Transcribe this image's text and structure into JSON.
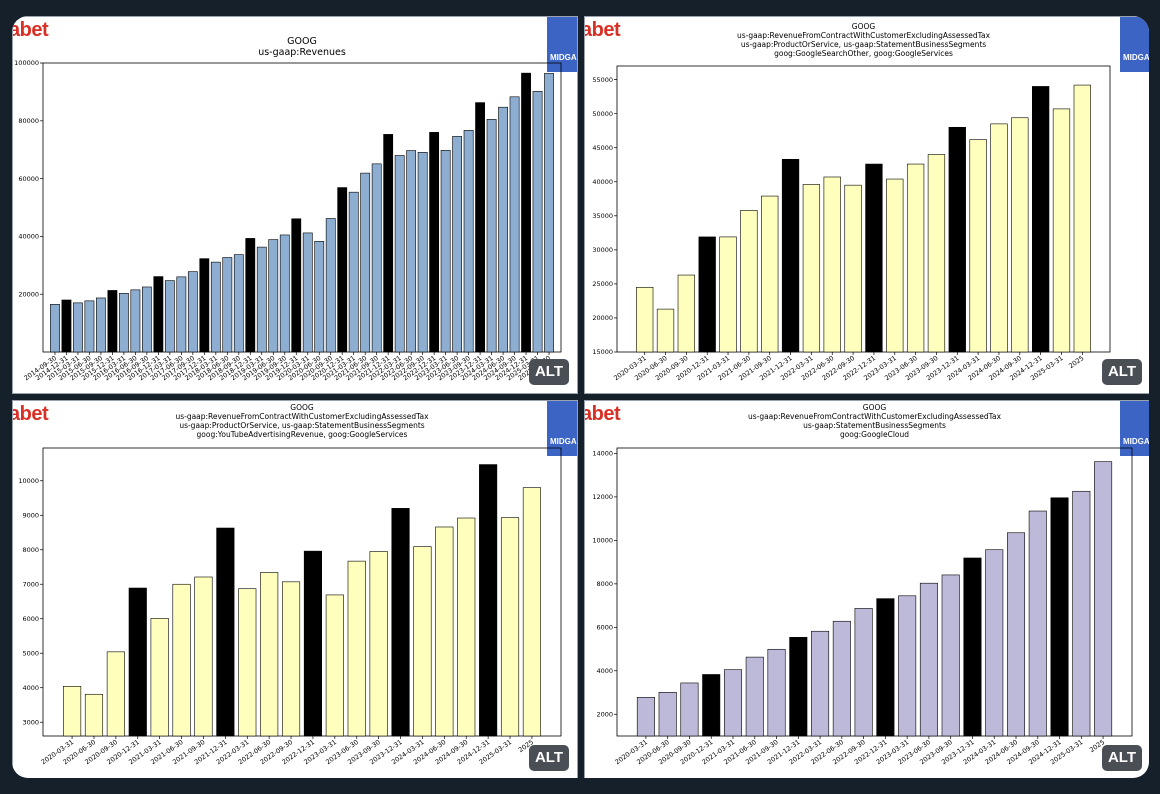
{
  "logo_text": "abet",
  "badge_text": "MIDGA",
  "alt_label": "ALT",
  "colors": {
    "bar_highlight": "#000000"
  },
  "chart_data": [
    {
      "type": "bar",
      "title": [
        "GOOG",
        "us-gaap:Revenues"
      ],
      "fill": "#8daed0",
      "categories": [
        "2014-09-30",
        "2014-12-31",
        "2015-03-31",
        "2015-06-30",
        "2015-09-30",
        "2015-12-31",
        "2016-03-31",
        "2016-06-30",
        "2016-09-30",
        "2016-12-31",
        "2017-03-31",
        "2017-06-30",
        "2017-09-30",
        "2017-12-31",
        "2018-03-31",
        "2018-06-30",
        "2018-09-30",
        "2018-12-31",
        "2019-03-31",
        "2019-06-30",
        "2019-09-30",
        "2019-12-31",
        "2020-03-31",
        "2020-06-30",
        "2020-09-30",
        "2020-12-31",
        "2021-03-31",
        "2021-06-30",
        "2021-09-30",
        "2021-12-31",
        "2022-03-31",
        "2022-06-30",
        "2022-09-30",
        "2022-12-31",
        "2023-03-31",
        "2023-06-30",
        "2023-09-30",
        "2023-12-31",
        "2024-03-31",
        "2024-06-30",
        "2024-09-30",
        "2024-12-31",
        "2025-03-31",
        "2025-06-30"
      ],
      "values": [
        16500,
        18000,
        17000,
        17700,
        18700,
        21300,
        20300,
        21500,
        22500,
        26100,
        24700,
        26000,
        27800,
        32300,
        31100,
        32700,
        33700,
        39300,
        36300,
        38900,
        40500,
        46100,
        41200,
        38300,
        46200,
        56900,
        55300,
        61900,
        65100,
        75300,
        68000,
        69700,
        69100,
        76000,
        69800,
        74600,
        76700,
        86300,
        80500,
        84700,
        88300,
        96500,
        90200,
        96400
      ],
      "highlight": [
        false,
        true,
        false,
        false,
        false,
        true,
        false,
        false,
        false,
        true,
        false,
        false,
        false,
        true,
        false,
        false,
        false,
        true,
        false,
        false,
        false,
        true,
        false,
        false,
        false,
        true,
        false,
        false,
        false,
        true,
        false,
        false,
        false,
        true,
        false,
        false,
        false,
        true,
        false,
        false,
        false,
        true,
        false,
        false
      ],
      "ylim": [
        0,
        100000
      ],
      "yticks": [
        20000,
        40000,
        60000,
        80000,
        100000
      ],
      "ytick_labels": [
        "20000",
        "40000",
        "60000",
        "80000",
        "100000"
      ],
      "xlabel": "",
      "ylabel": ""
    },
    {
      "type": "bar",
      "title": [
        "GOOG",
        "us-gaap:RevenueFromContractWithCustomerExcludingAssessedTax",
        "us-gaap:ProductOrService, us-gaap:StatementBusinessSegments",
        "goog:GoogleSearchOther, goog:GoogleServices"
      ],
      "fill": "#ffffbd",
      "categories": [
        "2020-03-31",
        "2020-06-30",
        "2020-09-30",
        "2020-12-31",
        "2021-03-31",
        "2021-06-30",
        "2021-09-30",
        "2021-12-31",
        "2022-03-31",
        "2022-06-30",
        "2022-09-30",
        "2022-12-31",
        "2023-03-31",
        "2023-06-30",
        "2023-09-30",
        "2023-12-31",
        "2024-03-31",
        "2024-06-30",
        "2024-09-30",
        "2024-12-31",
        "2025-03-31",
        "2025-06-30"
      ],
      "tick_labels": [
        "2020-03-31",
        "2020-06-30",
        "2020-09-30",
        "2020-12-31",
        "2021-03-31",
        "2021-06-30",
        "2021-09-30",
        "2021-12-31",
        "2022-03-31",
        "2022-06-30",
        "2022-09-30",
        "2022-12-31",
        "2023-03-31",
        "2023-06-30",
        "2023-09-30",
        "2023-12-31",
        "2024-03-31",
        "2024-06-30",
        "2024-09-30",
        "2024-12-31",
        "2025-03-31",
        "2025"
      ],
      "values": [
        24500,
        21300,
        26300,
        31900,
        31900,
        35800,
        37900,
        43300,
        39600,
        40700,
        39500,
        42600,
        40400,
        42600,
        44000,
        48000,
        46200,
        48500,
        49400,
        54000,
        50700,
        54200
      ],
      "highlight": [
        false,
        false,
        false,
        true,
        false,
        false,
        false,
        true,
        false,
        false,
        false,
        true,
        false,
        false,
        false,
        true,
        false,
        false,
        false,
        true,
        false,
        false
      ],
      "ylim": [
        15000,
        57000
      ],
      "yticks": [
        15000,
        20000,
        25000,
        30000,
        35000,
        40000,
        45000,
        50000,
        55000
      ],
      "ytick_labels": [
        "15000",
        "20000",
        "25000",
        "30000",
        "35000",
        "40000",
        "45000",
        "50000",
        "55000"
      ],
      "xlabel": "",
      "ylabel": ""
    },
    {
      "type": "bar",
      "title": [
        "GOOG",
        "us-gaap:RevenueFromContractWithCustomerExcludingAssessedTax",
        "us-gaap:ProductOrService, us-gaap:StatementBusinessSegments",
        "goog:YouTubeAdvertisingRevenue, goog:GoogleServices"
      ],
      "fill": "#ffffbd",
      "categories": [
        "2020-03-31",
        "2020-06-30",
        "2020-09-30",
        "2020-12-31",
        "2021-03-31",
        "2021-06-30",
        "2021-09-30",
        "2021-12-31",
        "2022-03-31",
        "2022-06-30",
        "2022-09-30",
        "2022-12-31",
        "2023-03-31",
        "2023-06-30",
        "2023-09-30",
        "2023-12-31",
        "2024-03-31",
        "2024-06-30",
        "2024-09-30",
        "2024-12-31",
        "2025-03-31",
        "2025-06-30"
      ],
      "tick_labels": [
        "2020-03-31",
        "2020-06-30",
        "2020-09-30",
        "2020-12-31",
        "2021-03-31",
        "2021-06-30",
        "2021-09-30",
        "2021-12-31",
        "2022-03-31",
        "2022-06-30",
        "2022-09-30",
        "2022-12-31",
        "2023-03-31",
        "2023-06-30",
        "2023-09-30",
        "2023-12-31",
        "2024-03-31",
        "2024-06-30",
        "2024-09-30",
        "2024-12-31",
        "2025-03-31",
        "2025"
      ],
      "values": [
        4040,
        3810,
        5040,
        6890,
        6010,
        7000,
        7210,
        8630,
        6870,
        7340,
        7070,
        7960,
        6690,
        7670,
        7950,
        9200,
        8090,
        8660,
        8920,
        10470,
        8930,
        9800
      ],
      "highlight": [
        false,
        false,
        false,
        true,
        false,
        false,
        false,
        true,
        false,
        false,
        false,
        true,
        false,
        false,
        false,
        true,
        false,
        false,
        false,
        true,
        false,
        false
      ],
      "ylim": [
        2600,
        10950
      ],
      "yticks": [
        3000,
        4000,
        5000,
        6000,
        7000,
        8000,
        9000,
        10000
      ],
      "ytick_labels": [
        "3000",
        "4000",
        "5000",
        "6000",
        "7000",
        "8000",
        "9000",
        "10000"
      ],
      "xlabel": "",
      "ylabel": ""
    },
    {
      "type": "bar",
      "title": [
        "GOOG",
        "us-gaap:RevenueFromContractWithCustomerExcludingAssessedTax",
        "us-gaap:StatementBusinessSegments",
        "goog:GoogleCloud"
      ],
      "fill": "#bdbad9",
      "categories": [
        "2020-03-31",
        "2020-06-30",
        "2020-09-30",
        "2020-12-31",
        "2021-03-31",
        "2021-06-30",
        "2021-09-30",
        "2021-12-31",
        "2022-03-31",
        "2022-06-30",
        "2022-09-30",
        "2022-12-31",
        "2023-03-31",
        "2023-06-30",
        "2023-09-30",
        "2023-12-31",
        "2024-03-31",
        "2024-06-30",
        "2024-09-30",
        "2024-12-31",
        "2025-03-31",
        "2025-06-30"
      ],
      "tick_labels": [
        "2020-03-31",
        "2020-06-30",
        "2020-09-30",
        "2020-12-31",
        "2021-03-31",
        "2021-06-30",
        "2021-09-30",
        "2021-12-31",
        "2022-03-31",
        "2022-06-30",
        "2022-09-30",
        "2022-12-31",
        "2023-03-31",
        "2023-06-30",
        "2023-09-30",
        "2023-12-31",
        "2024-03-31",
        "2024-06-30",
        "2024-09-30",
        "2024-12-31",
        "2025-03-31",
        "2025"
      ],
      "values": [
        2780,
        3010,
        3440,
        3830,
        4050,
        4630,
        4990,
        5540,
        5820,
        6280,
        6870,
        7320,
        7450,
        8030,
        8410,
        9190,
        9570,
        10350,
        11350,
        11960,
        12260,
        13620
      ],
      "highlight": [
        false,
        false,
        false,
        true,
        false,
        false,
        false,
        true,
        false,
        false,
        false,
        true,
        false,
        false,
        false,
        true,
        false,
        false,
        false,
        true,
        false,
        false
      ],
      "ylim": [
        1000,
        14250
      ],
      "yticks": [
        2000,
        4000,
        6000,
        8000,
        10000,
        12000,
        14000
      ],
      "ytick_labels": [
        "2000",
        "4000",
        "6000",
        "8000",
        "10000",
        "12000",
        "14000"
      ],
      "xlabel": "",
      "ylabel": ""
    }
  ]
}
